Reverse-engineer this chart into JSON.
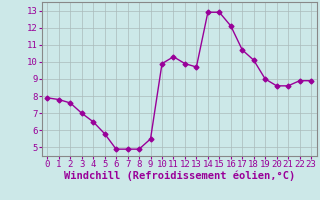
{
  "x": [
    0,
    1,
    2,
    3,
    4,
    5,
    6,
    7,
    8,
    9,
    10,
    11,
    12,
    13,
    14,
    15,
    16,
    17,
    18,
    19,
    20,
    21,
    22,
    23
  ],
  "y": [
    7.9,
    7.8,
    7.6,
    7.0,
    6.5,
    5.8,
    4.9,
    4.9,
    4.9,
    5.5,
    9.9,
    10.3,
    9.9,
    9.7,
    12.9,
    12.9,
    12.1,
    10.7,
    10.1,
    9.0,
    8.6,
    8.6,
    8.9,
    8.9
  ],
  "line_color": "#990099",
  "marker": "D",
  "marker_size": 2.5,
  "bg_color": "#cce8e8",
  "grid_color": "#aabbbb",
  "xlabel": "Windchill (Refroidissement éolien,°C)",
  "xlabel_fontsize": 7.5,
  "xlim": [
    -0.5,
    23.5
  ],
  "ylim": [
    4.5,
    13.5
  ],
  "yticks": [
    5,
    6,
    7,
    8,
    9,
    10,
    11,
    12,
    13
  ],
  "xticks": [
    0,
    1,
    2,
    3,
    4,
    5,
    6,
    7,
    8,
    9,
    10,
    11,
    12,
    13,
    14,
    15,
    16,
    17,
    18,
    19,
    20,
    21,
    22,
    23
  ],
  "tick_fontsize": 6.5
}
